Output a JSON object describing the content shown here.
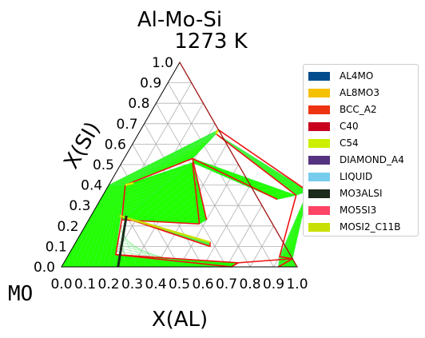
{
  "chart_data": {
    "type": "ternary-phase-diagram",
    "title": "Al-Mo-Si",
    "subtitle": "1273  K",
    "corner_label": "MO",
    "xlabel": "X(AL)",
    "ylabel": "X(SI)",
    "x_ticks": [
      "0.0",
      "0.1",
      "0.2",
      "0.3",
      "0.4",
      "0.5",
      "0.6",
      "0.7",
      "0.8",
      "0.9",
      "1.0"
    ],
    "y_ticks": [
      "0.0",
      "0.1",
      "0.2",
      "0.3",
      "0.4",
      "0.5",
      "0.6",
      "0.7",
      "0.8",
      "0.9",
      "1.0"
    ],
    "xlim": [
      0,
      1
    ],
    "ylim": [
      0,
      1
    ],
    "grid": true,
    "legend_position": "right",
    "colors": {
      "two_phase_fill": "#22ff00",
      "tie_line": "#33ee44",
      "boundary": "#ee1111",
      "axis": "#000000",
      "grid": "#b0b0b0"
    },
    "legend": [
      {
        "label": "AL4MO",
        "color": "#004c8c"
      },
      {
        "label": "AL8MO3",
        "color": "#f5c000"
      },
      {
        "label": "BCC_A2",
        "color": "#ee3311"
      },
      {
        "label": "C40",
        "color": "#c8001e"
      },
      {
        "label": "C54",
        "color": "#ccee00"
      },
      {
        "label": "DIAMOND_A4",
        "color": "#553380"
      },
      {
        "label": "LIQUID",
        "color": "#77ccee"
      },
      {
        "label": "MO3ALSI",
        "color": "#1c2a1c"
      },
      {
        "label": "MO5SI3",
        "color": "#ff4466"
      },
      {
        "label": "MOSI2_C11B",
        "color": "#c8e000"
      }
    ],
    "two_phase_regions": [
      {
        "points": [
          [
            0.0,
            0.0
          ],
          [
            0.22,
            0.0
          ],
          [
            0.07,
            0.4
          ],
          [
            0.0,
            0.4
          ]
        ]
      },
      {
        "points": [
          [
            0.0,
            0.4
          ],
          [
            0.07,
            0.4
          ],
          [
            0.33,
            0.67
          ]
        ]
      },
      {
        "points": [
          [
            0.33,
            0.67
          ],
          [
            0.33,
            0.65
          ],
          [
            0.29,
            0.53
          ],
          [
            0.07,
            0.4
          ]
        ]
      },
      {
        "points": [
          [
            0.33,
            0.65
          ],
          [
            0.37,
            0.63
          ],
          [
            0.86,
            0.37
          ],
          [
            0.82,
            0.35
          ]
        ]
      },
      {
        "points": [
          [
            0.29,
            0.53
          ],
          [
            0.82,
            0.35
          ],
          [
            0.75,
            0.33
          ],
          [
            0.3,
            0.51
          ]
        ]
      },
      {
        "points": [
          [
            0.07,
            0.4
          ],
          [
            0.14,
            0.23
          ],
          [
            0.3,
            0.51
          ]
        ]
      },
      {
        "points": [
          [
            0.14,
            0.23
          ],
          [
            0.48,
            0.21
          ],
          [
            0.5,
            0.23
          ],
          [
            0.3,
            0.51
          ]
        ]
      },
      {
        "points": [
          [
            0.12,
            0.25
          ],
          [
            0.15,
            0.24
          ],
          [
            0.58,
            0.1
          ],
          [
            0.57,
            0.12
          ]
        ]
      },
      {
        "points": [
          [
            0.22,
            0.0
          ],
          [
            0.72,
            0.0
          ],
          [
            0.74,
            0.02
          ],
          [
            0.2,
            0.06
          ],
          [
            0.14,
            0.23
          ]
        ]
      },
      {
        "points": [
          [
            0.86,
            0.37
          ],
          [
            0.96,
            0.04
          ],
          [
            1.0,
            0.0
          ],
          [
            0.92,
            0.0
          ],
          [
            0.9,
            0.05
          ]
        ]
      },
      {
        "points": [
          [
            0.92,
            0.0
          ],
          [
            1.0,
            0.0
          ],
          [
            0.94,
            0.04
          ]
        ]
      }
    ],
    "boundary_lines": [
      {
        "points": [
          [
            0.33,
            0.67
          ],
          [
            0.86,
            0.37
          ]
        ]
      },
      {
        "points": [
          [
            0.33,
            0.65
          ],
          [
            0.82,
            0.35
          ]
        ]
      },
      {
        "points": [
          [
            0.29,
            0.53
          ],
          [
            0.75,
            0.33
          ]
        ]
      },
      {
        "points": [
          [
            0.29,
            0.53
          ],
          [
            0.5,
            0.23
          ]
        ]
      },
      {
        "points": [
          [
            0.3,
            0.51
          ],
          [
            0.48,
            0.21
          ]
        ]
      },
      {
        "points": [
          [
            0.07,
            0.4
          ],
          [
            0.29,
            0.53
          ]
        ]
      },
      {
        "points": [
          [
            0.07,
            0.4
          ],
          [
            0.14,
            0.23
          ]
        ]
      },
      {
        "points": [
          [
            0.14,
            0.23
          ],
          [
            0.48,
            0.21
          ]
        ]
      },
      {
        "points": [
          [
            0.14,
            0.23
          ],
          [
            0.2,
            0.06
          ],
          [
            0.74,
            0.02
          ]
        ]
      },
      {
        "points": [
          [
            0.2,
            0.06
          ],
          [
            0.72,
            0.0
          ]
        ]
      },
      {
        "points": [
          [
            0.12,
            0.25
          ],
          [
            0.57,
            0.12
          ],
          [
            0.58,
            0.1
          ],
          [
            0.15,
            0.24
          ]
        ]
      },
      {
        "points": [
          [
            0.72,
            0.0
          ],
          [
            0.74,
            0.02
          ],
          [
            0.96,
            0.04
          ],
          [
            0.92,
            0.0
          ]
        ]
      },
      {
        "points": [
          [
            0.82,
            0.35
          ],
          [
            0.9,
            0.05
          ],
          [
            0.96,
            0.04
          ]
        ]
      },
      {
        "points": [
          [
            0.33,
            0.67
          ],
          [
            0.33,
            0.65
          ]
        ]
      }
    ],
    "highlight_lines": [
      {
        "points": [
          [
            0.33,
            0.67
          ],
          [
            0.33,
            0.65
          ]
        ],
        "color": "#ddee00"
      },
      {
        "points": [
          [
            0.07,
            0.4
          ],
          [
            0.1,
            0.41
          ]
        ],
        "color": "#ddee00"
      },
      {
        "points": [
          [
            0.12,
            0.25
          ],
          [
            0.57,
            0.12
          ]
        ],
        "color": "#c8e000"
      }
    ],
    "dark_segment": {
      "points": [
        [
          0.15,
          0.25
        ],
        [
          0.24,
          0.0
        ]
      ],
      "color": "#1c2a1c"
    }
  }
}
